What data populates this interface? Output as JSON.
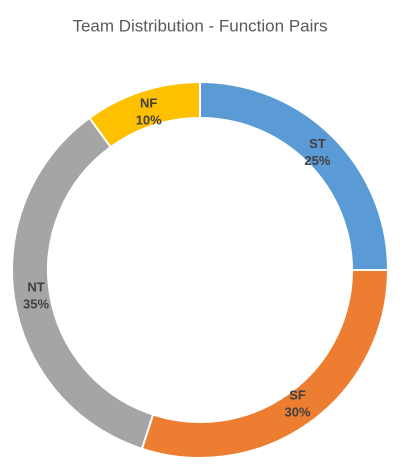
{
  "chart_data": {
    "type": "doughnut",
    "title": "Team Distribution - Function Pairs",
    "categories": [
      "ST",
      "SF",
      "NT",
      "NF"
    ],
    "values": [
      25,
      30,
      35,
      10
    ],
    "value_labels": [
      "25%",
      "30%",
      "35%",
      "10%"
    ],
    "colors": [
      "#5b9bd5",
      "#ed7d31",
      "#a5a5a5",
      "#ffc000"
    ]
  }
}
